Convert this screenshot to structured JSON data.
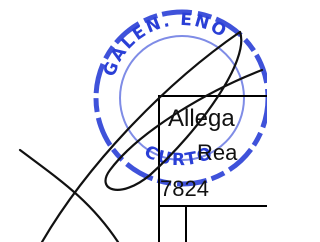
{
  "stamp": {
    "top_text": "GALEN. ENO",
    "bottom_text": "CURTO"
  },
  "table": {
    "rows": [
      [
        "Allega"
      ],
      [
        "Rea"
      ],
      [
        "7824"
      ]
    ]
  }
}
